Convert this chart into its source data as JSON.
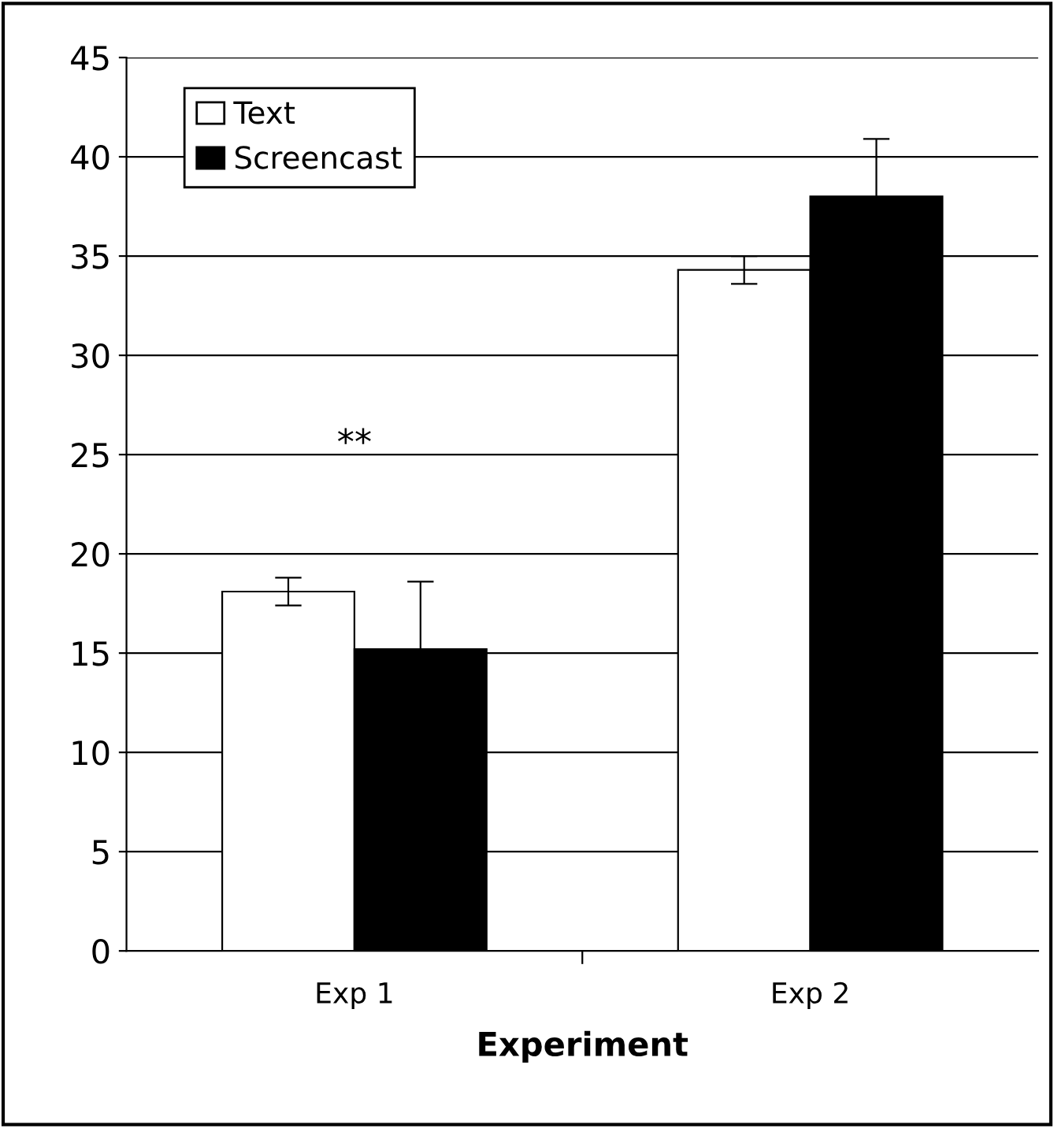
{
  "chart_data": {
    "type": "bar",
    "xlabel": "Experiment",
    "categories": [
      "Exp 1",
      "Exp 2"
    ],
    "series": [
      {
        "name": "Text",
        "color": "#ffffff",
        "values": [
          18.1,
          34.3
        ],
        "errors": [
          0.7,
          0.7
        ]
      },
      {
        "name": "Screencast",
        "color": "#000000",
        "values": [
          15.2,
          38.0
        ],
        "errors": [
          3.4,
          2.9
        ]
      }
    ],
    "ylim": [
      0,
      45
    ],
    "yticks": [
      0,
      5,
      10,
      15,
      20,
      25,
      30,
      35,
      40,
      45
    ],
    "grid": "y",
    "legend": "top left",
    "annotations": [
      "**"
    ]
  }
}
